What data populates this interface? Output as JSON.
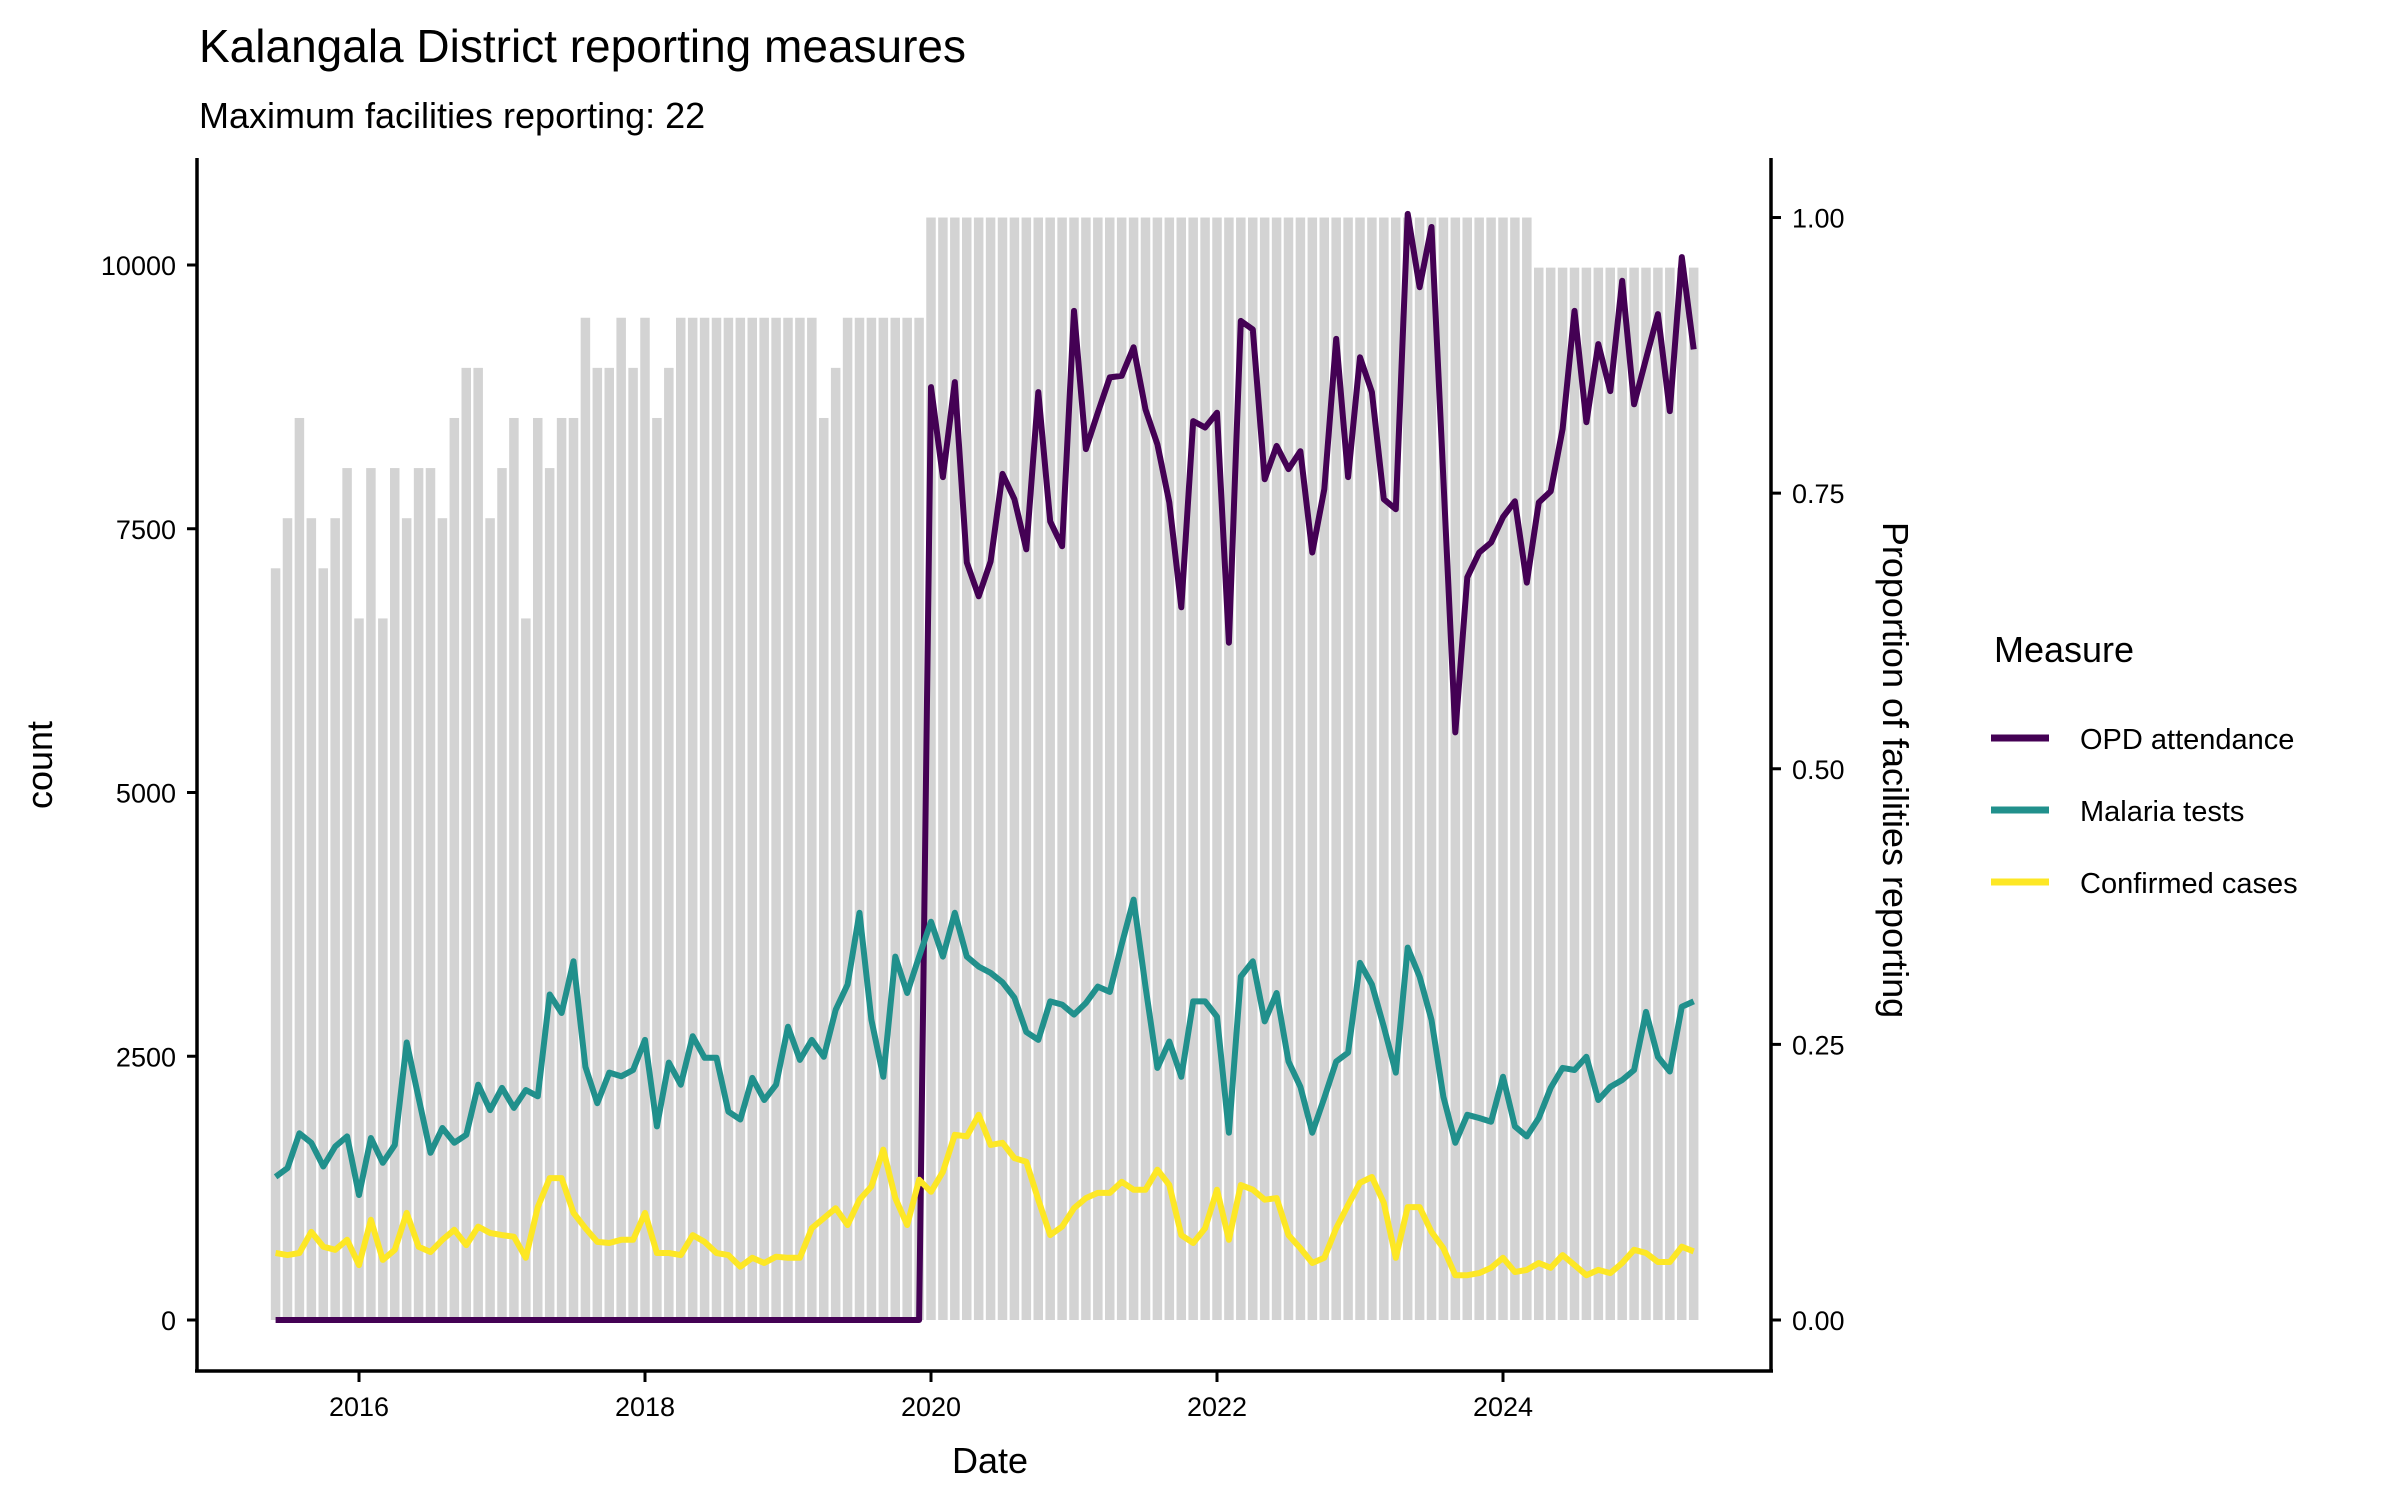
{
  "chart_data": {
    "type": "line",
    "title": "Kalangala District reporting measures",
    "subtitle": "Maximum facilities reporting: 22",
    "xlabel": "Date",
    "ylabel": "count",
    "y2label": "Proportion of facilities reporting",
    "max_facilities": 22,
    "x_start": "2015-06",
    "x_end": "2025-05",
    "xlim": [
      "2015-03",
      "2025-08"
    ],
    "ylim": [
      -500,
      11000
    ],
    "y2_scale_count_per_unit": 10450,
    "x_ticks": [
      "2016",
      "2018",
      "2020",
      "2022",
      "2024"
    ],
    "y_ticks": [
      0,
      2500,
      5000,
      7500,
      10000
    ],
    "y_tick_labels": [
      "0",
      "2500",
      "5000",
      "7500",
      "10000"
    ],
    "y2_ticks": [
      0,
      0.25,
      0.5,
      0.75,
      1.0
    ],
    "y2_tick_labels": [
      "0.00",
      "0.25",
      "0.50",
      "0.75",
      "1.00"
    ],
    "grid": false,
    "legend": {
      "title": "Measure",
      "placement": "right"
    },
    "bars": {
      "name": "Facilities reporting",
      "color": "#d3d3d3",
      "facilities": [
        15,
        16,
        18,
        16,
        15,
        16,
        17,
        14,
        17,
        14,
        17,
        16,
        17,
        17,
        16,
        18,
        19,
        19,
        16,
        17,
        18,
        14,
        18,
        17,
        18,
        18,
        20,
        19,
        19,
        20,
        19,
        20,
        18,
        19,
        20,
        20,
        20,
        20,
        20,
        20,
        20,
        20,
        20,
        20,
        20,
        20,
        18,
        19,
        20,
        20,
        20,
        20,
        20,
        20,
        20,
        22,
        22,
        22,
        22,
        22,
        22,
        22,
        22,
        22,
        22,
        22,
        22,
        22,
        22,
        22,
        22,
        22,
        22,
        22,
        22,
        22,
        22,
        22,
        22,
        22,
        22,
        22,
        22,
        22,
        22,
        22,
        22,
        22,
        22,
        22,
        22,
        22,
        22,
        22,
        22,
        22,
        22,
        22,
        22,
        22,
        22,
        22,
        22,
        22,
        22,
        22,
        21,
        21,
        21,
        21,
        21,
        21,
        21,
        21,
        21,
        21,
        21,
        21,
        21,
        21
      ]
    },
    "series": [
      {
        "name": "OPD attendance",
        "color": "#440154",
        "values": [
          0,
          0,
          0,
          0,
          0,
          0,
          0,
          0,
          0,
          0,
          0,
          0,
          0,
          0,
          0,
          0,
          0,
          0,
          0,
          0,
          0,
          0,
          0,
          0,
          0,
          0,
          0,
          0,
          0,
          0,
          0,
          0,
          0,
          0,
          0,
          0,
          0,
          0,
          0,
          0,
          0,
          0,
          0,
          0,
          0,
          0,
          0,
          0,
          0,
          0,
          0,
          0,
          0,
          0,
          0,
          8843,
          7990,
          8890,
          7180,
          6860,
          7190,
          8020,
          7780,
          7305,
          8795,
          7570,
          7335,
          9565,
          8255,
          8600,
          8935,
          8950,
          9220,
          8630,
          8300,
          7750,
          6755,
          8520,
          8460,
          8600,
          6420,
          9470,
          9390,
          7970,
          8285,
          8065,
          8235,
          7275,
          7875,
          9300,
          7990,
          9125,
          8795,
          7780,
          7685,
          10484,
          9790,
          10360,
          7965,
          5570,
          7040,
          7275,
          7370,
          7610,
          7760,
          6990,
          7750,
          7855,
          8445,
          9565,
          8510,
          9250,
          8805,
          9850,
          8680,
          9110,
          9535,
          8615,
          10075,
          9200
        ]
      },
      {
        "name": "Malaria tests",
        "color": "#21908c",
        "values": [
          1357,
          1440,
          1770,
          1680,
          1455,
          1645,
          1740,
          1185,
          1725,
          1490,
          1660,
          2630,
          2105,
          1585,
          1820,
          1680,
          1755,
          2230,
          1990,
          2200,
          2010,
          2180,
          2120,
          3085,
          2910,
          3400,
          2400,
          2055,
          2345,
          2310,
          2370,
          2655,
          1835,
          2440,
          2230,
          2690,
          2485,
          2485,
          1975,
          1900,
          2295,
          2085,
          2230,
          2780,
          2465,
          2655,
          2495,
          2940,
          3180,
          3860,
          2845,
          2305,
          3445,
          3100,
          3445,
          3775,
          3445,
          3860,
          3445,
          3350,
          3290,
          3200,
          3055,
          2730,
          2655,
          3020,
          2990,
          2895,
          3005,
          3160,
          3110,
          3560,
          3985,
          3160,
          2390,
          2640,
          2305,
          3020,
          3020,
          2875,
          1775,
          3255,
          3400,
          2830,
          3100,
          2450,
          2210,
          1775,
          2105,
          2450,
          2535,
          3385,
          3180,
          2780,
          2345,
          3530,
          3255,
          2845,
          2115,
          1680,
          1945,
          1915,
          1880,
          2305,
          1835,
          1740,
          1915,
          2200,
          2390,
          2370,
          2495,
          2085,
          2210,
          2275,
          2370,
          2920,
          2495,
          2355,
          2970,
          3020
        ]
      },
      {
        "name": "Confirmed cases",
        "color": "#fde725",
        "values": [
          635,
          615,
          635,
          835,
          695,
          665,
          760,
          520,
          950,
          570,
          665,
          1015,
          695,
          645,
          760,
          855,
          710,
          885,
          825,
          805,
          790,
          590,
          1070,
          1345,
          1345,
          1015,
          870,
          740,
          730,
          760,
          760,
          1015,
          635,
          635,
          615,
          805,
          740,
          635,
          615,
          505,
          590,
          540,
          600,
          590,
          590,
          870,
          965,
          1060,
          900,
          1140,
          1265,
          1615,
          1155,
          900,
          1330,
          1215,
          1405,
          1755,
          1740,
          1945,
          1660,
          1680,
          1535,
          1500,
          1140,
          805,
          885,
          1060,
          1155,
          1205,
          1205,
          1310,
          1235,
          1235,
          1425,
          1280,
          805,
          730,
          870,
          1235,
          760,
          1280,
          1235,
          1140,
          1155,
          805,
          680,
          540,
          590,
          870,
          1090,
          1300,
          1355,
          1110,
          590,
          1070,
          1070,
          835,
          680,
          425,
          425,
          445,
          495,
          590,
          455,
          475,
          540,
          495,
          615,
          520,
          425,
          475,
          445,
          540,
          665,
          635,
          550,
          550,
          695,
          650
        ]
      }
    ]
  }
}
